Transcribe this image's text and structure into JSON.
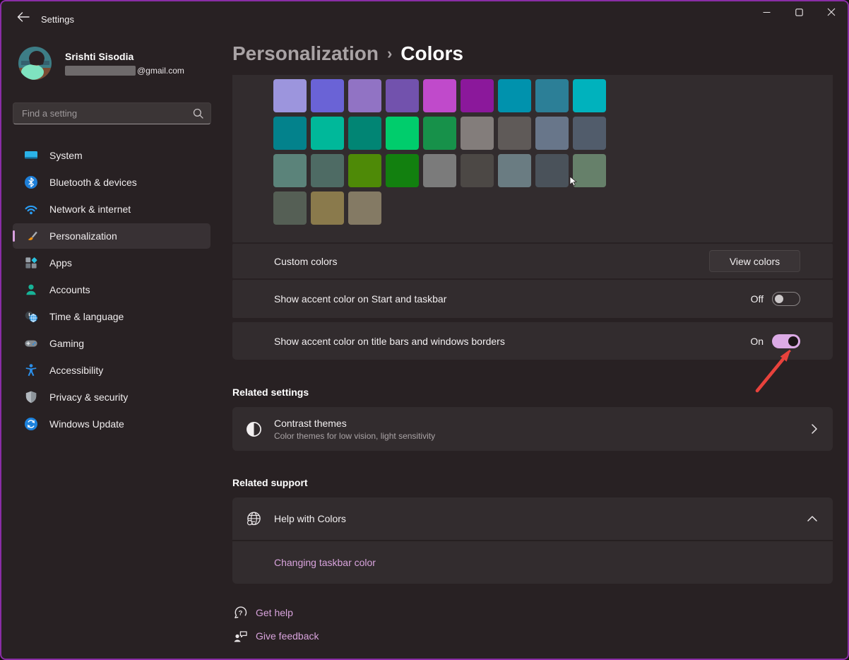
{
  "window": {
    "title": "Settings",
    "controls": {
      "minimize": "minimize",
      "maximize": "maximize",
      "close": "close"
    },
    "border_color": "#8a2da6"
  },
  "profile": {
    "name": "Srishti Sisodia",
    "email_suffix": "@gmail.com"
  },
  "search": {
    "placeholder": "Find a setting"
  },
  "sidebar": {
    "items": [
      {
        "label": "System",
        "icon": "system-icon",
        "selected": false
      },
      {
        "label": "Bluetooth & devices",
        "icon": "bluetooth-icon",
        "selected": false
      },
      {
        "label": "Network & internet",
        "icon": "network-icon",
        "selected": false
      },
      {
        "label": "Personalization",
        "icon": "personalization-icon",
        "selected": true
      },
      {
        "label": "Apps",
        "icon": "apps-icon",
        "selected": false
      },
      {
        "label": "Accounts",
        "icon": "accounts-icon",
        "selected": false
      },
      {
        "label": "Time & language",
        "icon": "time-icon",
        "selected": false
      },
      {
        "label": "Gaming",
        "icon": "gaming-icon",
        "selected": false
      },
      {
        "label": "Accessibility",
        "icon": "accessibility-icon",
        "selected": false
      },
      {
        "label": "Privacy & security",
        "icon": "privacy-icon",
        "selected": false
      },
      {
        "label": "Windows Update",
        "icon": "update-icon",
        "selected": false
      }
    ]
  },
  "header": {
    "breadcrumb_parent": "Personalization",
    "breadcrumb_separator": "›",
    "breadcrumb_current": "Colors"
  },
  "accent_palette": {
    "rows": [
      [
        "#9c95dd",
        "#6a63d6",
        "#9173c4",
        "#7252ad",
        "#c04acb",
        "#8b189b",
        "#0092ad",
        "#2c7f97",
        "#00b2bd"
      ],
      [
        "#03828c",
        "#00b89a",
        "#018574",
        "#00cd6c",
        "#17914a",
        "#837d7b",
        "#5f5a58",
        "#68768a",
        "#515c6b"
      ],
      [
        "#5b837a",
        "#4e6b64",
        "#4e8a07",
        "#12800f",
        "#7b7b7b",
        "#4c4845",
        "#6a7c82",
        "#4a525a",
        "#66806a"
      ],
      [
        "#555f55",
        "#8a7a4c",
        "#847a64"
      ]
    ]
  },
  "settings_rows": {
    "custom_colors": {
      "label": "Custom colors",
      "button_label": "View colors"
    },
    "accent_start_taskbar": {
      "label": "Show accent color on Start and taskbar",
      "state": "Off"
    },
    "accent_title_bars": {
      "label": "Show accent color on title bars and windows borders",
      "state": "On"
    }
  },
  "related_settings": {
    "heading": "Related settings",
    "contrast": {
      "title": "Contrast themes",
      "subtitle": "Color themes for low vision, light sensitivity"
    }
  },
  "related_support": {
    "heading": "Related support",
    "help": {
      "title": "Help with Colors"
    },
    "links": [
      "Changing taskbar color"
    ]
  },
  "footer_links": [
    {
      "label": "Get help",
      "icon": "get-help-icon"
    },
    {
      "label": "Give feedback",
      "icon": "give-feedback-icon"
    }
  ],
  "colors": {
    "accent_toggle_on": "#dcabe6",
    "link": "#d8a3dc",
    "annotation_arrow": "#e8423c",
    "sidebar_selection_pill": "#d8a0e0"
  }
}
